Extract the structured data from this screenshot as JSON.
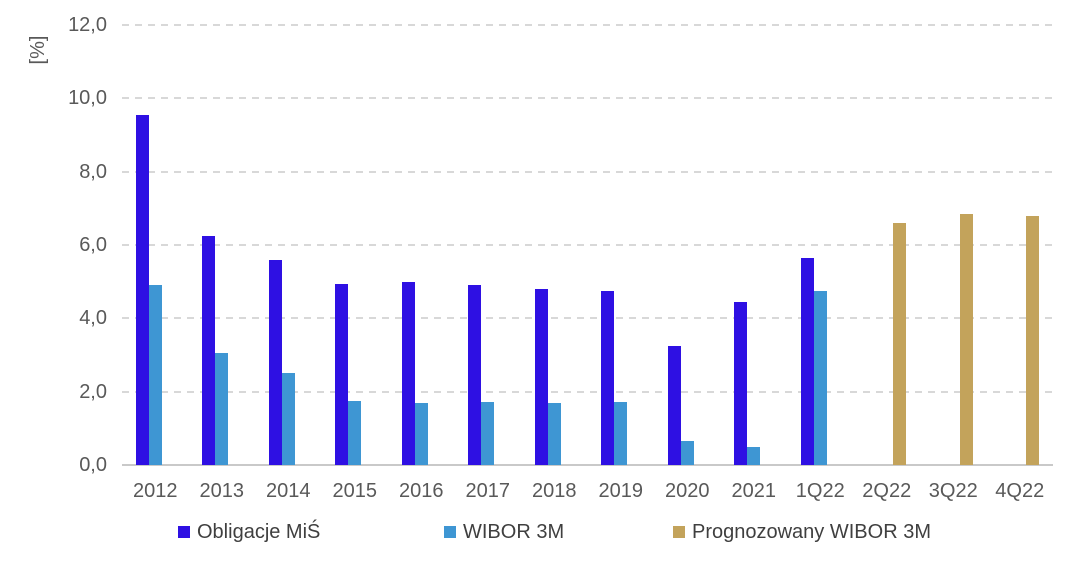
{
  "colors": {
    "background": "#ffffff",
    "gridline": "#d8d8d8",
    "axis_baseline": "#c9c9c9",
    "tick_label_text": "#595959",
    "legend_text": "#3f3f3f",
    "series_obligacje": "#2e10e3",
    "series_wibor": "#3e96d3",
    "series_prognoza": "#c3a35b"
  },
  "chart_data": {
    "type": "bar",
    "title": "",
    "xlabel": "",
    "ylabel": "[%]",
    "ylim": [
      0,
      12
    ],
    "grid": "horizontal-dashed",
    "legend_position": "bottom",
    "yticks": [
      {
        "value": 0,
        "label": "0,0"
      },
      {
        "value": 2,
        "label": "2,0"
      },
      {
        "value": 4,
        "label": "4,0"
      },
      {
        "value": 6,
        "label": "6,0"
      },
      {
        "value": 8,
        "label": "8,0"
      },
      {
        "value": 10,
        "label": "10,0"
      },
      {
        "value": 12,
        "label": "12,0"
      }
    ],
    "categories": [
      "2012",
      "2013",
      "2014",
      "2015",
      "2016",
      "2017",
      "2018",
      "2019",
      "2020",
      "2021",
      "1Q22",
      "2Q22",
      "3Q22",
      "4Q22"
    ],
    "series": [
      {
        "name": "Obligacje MiŚ",
        "color": "#2e10e3",
        "values": [
          9.55,
          6.25,
          5.6,
          4.95,
          5.0,
          4.9,
          4.8,
          4.75,
          3.25,
          4.45,
          5.65,
          null,
          null,
          null
        ]
      },
      {
        "name": "WIBOR 3M",
        "color": "#3e96d3",
        "values": [
          4.9,
          3.05,
          2.5,
          1.75,
          1.7,
          1.73,
          1.7,
          1.72,
          0.65,
          0.5,
          4.75,
          null,
          null,
          null
        ]
      },
      {
        "name": "Prognozowany WIBOR 3M",
        "color": "#c3a35b",
        "values": [
          null,
          null,
          null,
          null,
          null,
          null,
          null,
          null,
          null,
          null,
          null,
          6.6,
          6.85,
          6.8
        ]
      }
    ]
  }
}
